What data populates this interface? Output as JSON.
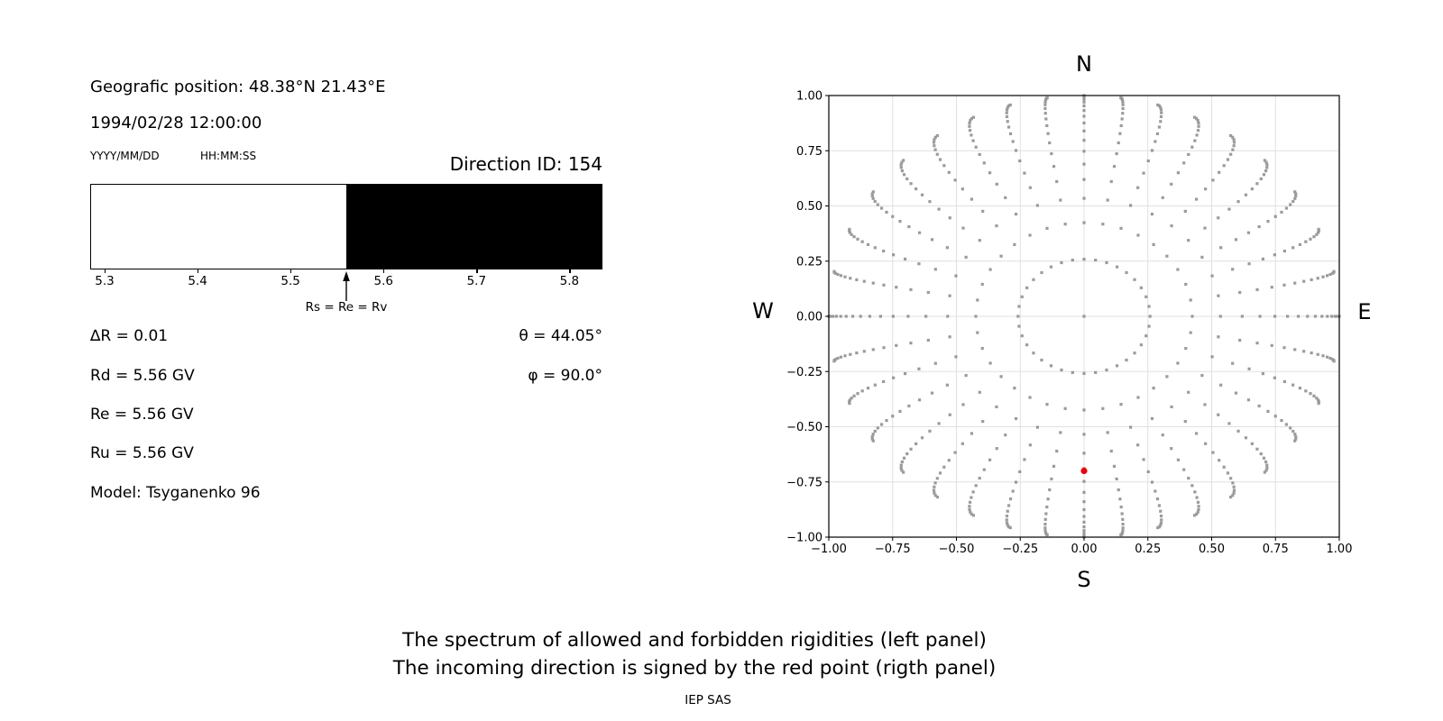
{
  "info_panel": {
    "geo_position": "Geografic position: 48.38°N 21.43°E",
    "datetime": "1994/02/28 12:00:00",
    "date_format_label": "YYYY/MM/DD",
    "time_format_label": "HH:MM:SS",
    "direction_id": "Direction ID: 154",
    "values": {
      "delta_r": "∆R = 0.01",
      "rd": "Rd = 5.56 GV",
      "re": "Re = 5.56 GV",
      "ru": "Ru = 5.56 GV",
      "model": "Model: Tsyganenko 96",
      "theta": "θ = 44.05°",
      "phi": "φ = 90.0°"
    }
  },
  "caption": {
    "line1": "The spectrum of allowed and forbidden rigidities (left panel)",
    "line2": "The incoming direction is signed by the red point (rigth panel)",
    "credit": "IEP SAS"
  },
  "chart_data": [
    {
      "id": "rigidity-spectrum",
      "type": "bar",
      "panel": "left",
      "xlim": [
        5.2845,
        5.8355
      ],
      "xticks": [
        5.3,
        5.4,
        5.5,
        5.6,
        5.7,
        5.8
      ],
      "xtick_labels": [
        "5.3",
        "5.4",
        "5.5",
        "5.6",
        "5.7",
        "5.8"
      ],
      "boundary": 5.56,
      "allowed_region": {
        "from": 5.2845,
        "to": 5.56,
        "color": "#ffffff",
        "meaning": "allowed rigidities"
      },
      "forbidden_region": {
        "from": 5.56,
        "to": 5.8355,
        "color": "#000000",
        "meaning": "forbidden rigidities"
      },
      "annotation": {
        "text": "Rs = Re = Rv",
        "x": 5.56
      }
    },
    {
      "id": "incoming-direction-map",
      "type": "scatter",
      "panel": "right",
      "xlim": [
        -1,
        1
      ],
      "ylim": [
        -1,
        1
      ],
      "xticks": [
        -1,
        -0.75,
        -0.5,
        -0.25,
        0,
        0.25,
        0.5,
        0.75,
        1
      ],
      "xtick_labels": [
        "−1.00",
        "−0.75",
        "−0.50",
        "−0.25",
        "0.00",
        "0.25",
        "0.50",
        "0.75",
        "1.00"
      ],
      "yticks": [
        -1,
        -0.75,
        -0.5,
        -0.25,
        0,
        0.25,
        0.5,
        0.75,
        1
      ],
      "ytick_labels": [
        "−1.00",
        "−0.75",
        "−0.50",
        "−0.25",
        "0.00",
        "0.25",
        "0.50",
        "0.75",
        "1.00"
      ],
      "compass": {
        "top": "N",
        "bottom": "S",
        "left": "W",
        "right": "E"
      },
      "grid": true,
      "gridline_color": "#e0e0e0",
      "grid_dots": {
        "description": "direction grid: 36 azimuth rays every 10°, 17 zenith steps per ray, radius r = sin(acos(c)), c linear from 0.966 to 0 (equal solid-angle zenith spacing), slight outward twist per ray",
        "azimuth_deg_start": 0,
        "azimuth_deg_step": 10,
        "azimuth_count": 36,
        "zenith_cos_start": 0.966,
        "zenith_cos_end": 0.0,
        "points_per_ray": 17,
        "ring_radius_inner": 0.259,
        "ring_radius_outer": 1.0,
        "twist_deg_max": 5,
        "center_dot": true,
        "dot_color": "#8a8a8a",
        "marker_size": 3.2
      },
      "red_point": {
        "x": 0.0,
        "y": -0.7,
        "color": "#ee0000",
        "meaning": "incoming direction"
      }
    }
  ]
}
